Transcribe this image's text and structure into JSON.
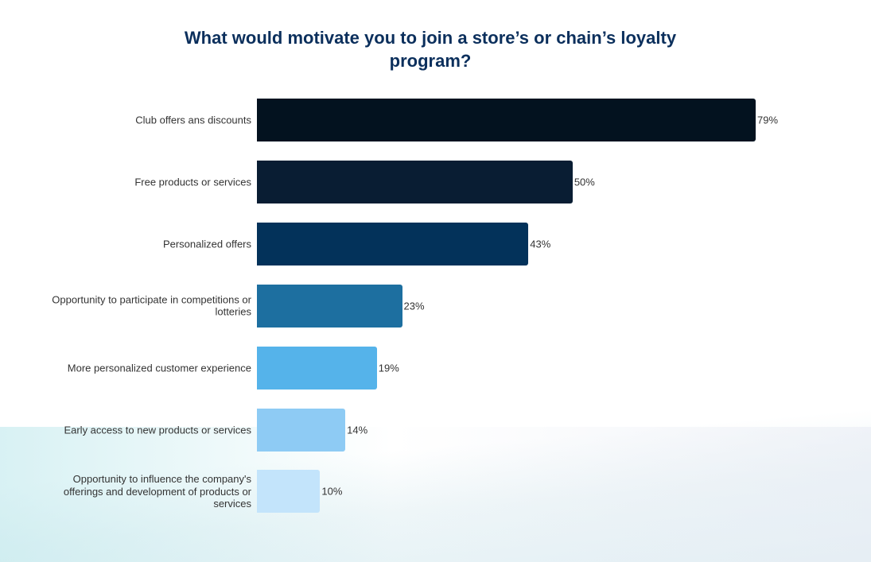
{
  "chart_data": {
    "type": "bar",
    "orientation": "horizontal",
    "title": "What would motivate you to join a store’s or chain’s loyalty program?",
    "categories": [
      "Club offers ans discounts",
      "Free products or services",
      "Personalized offers",
      "Opportunity to participate in competitions or lotteries",
      "More personalized customer experience",
      "Early access to new products or services",
      "Opportunity to influence the company's offerings and development of products or services"
    ],
    "values": [
      79,
      50,
      43,
      23,
      19,
      14,
      10
    ],
    "value_labels": [
      "79%",
      "50%",
      "43%",
      "23%",
      "19%",
      "14%",
      "10%"
    ],
    "colors": [
      "#03121f",
      "#091d33",
      "#03325a",
      "#1d6fa0",
      "#55b3ea",
      "#8ecbf4",
      "#c3e4fb"
    ]
  }
}
